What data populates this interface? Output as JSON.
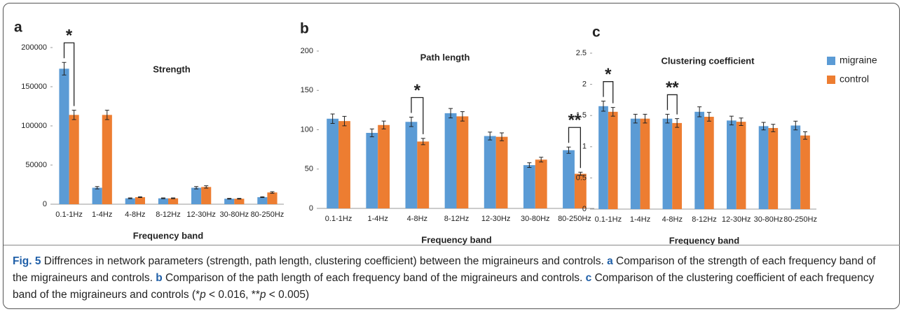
{
  "chart_data": [
    {
      "type": "bar",
      "panel": "a",
      "title": "Strength",
      "xlabel": "Frequency band",
      "categories": [
        "0.1-1Hz",
        "1-4Hz",
        "4-8Hz",
        "8-12Hz",
        "12-30Hz",
        "30-80Hz",
        "80-250Hz"
      ],
      "series": [
        {
          "color": "#5b9bd5",
          "values": [
            173000,
            21000,
            7500,
            7500,
            21000,
            7000,
            9000
          ],
          "errors": [
            8000,
            1500,
            500,
            500,
            1500,
            500,
            500
          ]
        },
        {
          "color": "#ed7d31",
          "values": [
            114000,
            114000,
            9000,
            7500,
            22000,
            7000,
            15000
          ],
          "errors": [
            6000,
            6000,
            500,
            500,
            1500,
            500,
            1000
          ]
        }
      ],
      "ylim": [
        0,
        200000
      ],
      "yticks": [
        0,
        50000,
        100000,
        150000,
        200000
      ],
      "annotations": [
        {
          "text": "*",
          "category": "0.1-1Hz"
        }
      ],
      "legend": false
    },
    {
      "type": "bar",
      "panel": "b",
      "title": "Path length",
      "xlabel": "Frequency band",
      "categories": [
        "0.1-1Hz",
        "1-4Hz",
        "4-8Hz",
        "8-12Hz",
        "12-30Hz",
        "30-80Hz",
        "80-250Hz"
      ],
      "series": [
        {
          "color": "#5b9bd5",
          "values": [
            114,
            96,
            110,
            121,
            92,
            55,
            74
          ],
          "errors": [
            6,
            5,
            6,
            6,
            5,
            3,
            4
          ]
        },
        {
          "color": "#ed7d31",
          "values": [
            111,
            106,
            85,
            117,
            91,
            62,
            44
          ],
          "errors": [
            6,
            5,
            4,
            6,
            5,
            3,
            2
          ]
        }
      ],
      "ylim": [
        0,
        200
      ],
      "yticks": [
        0,
        50,
        100,
        150,
        200
      ],
      "annotations": [
        {
          "text": "*",
          "category": "4-8Hz"
        },
        {
          "text": "**",
          "category": "80-250Hz"
        }
      ],
      "legend": false
    },
    {
      "type": "bar",
      "panel": "c",
      "title": "Clustering coefficient",
      "xlabel": "Frequency band",
      "categories": [
        "0.1-1Hz",
        "1-4Hz",
        "4-8Hz",
        "8-12Hz",
        "12-30Hz",
        "30-80Hz",
        "80-250Hz"
      ],
      "series": [
        {
          "name": "migraine",
          "color": "#5b9bd5",
          "values": [
            1.65,
            1.45,
            1.45,
            1.56,
            1.42,
            1.33,
            1.34
          ],
          "errors": [
            0.08,
            0.07,
            0.07,
            0.08,
            0.07,
            0.06,
            0.07
          ]
        },
        {
          "name": "control",
          "color": "#ed7d31",
          "values": [
            1.56,
            1.45,
            1.38,
            1.48,
            1.4,
            1.3,
            1.18
          ],
          "errors": [
            0.07,
            0.07,
            0.07,
            0.07,
            0.06,
            0.06,
            0.06
          ]
        }
      ],
      "ylim": [
        0,
        2.5
      ],
      "yticks": [
        0,
        0.5,
        1,
        1.5,
        2,
        2.5
      ],
      "annotations": [
        {
          "text": "*",
          "category": "0.1-1Hz"
        },
        {
          "text": "**",
          "category": "4-8Hz"
        }
      ],
      "legend": true
    }
  ],
  "caption": [
    {
      "text": "Fig. 5",
      "style": "b"
    },
    {
      "text": " Diffrences in network parameters (strength, path length, clustering coefficient) between the migraineurs and controls. "
    },
    {
      "text": "a",
      "style": "b"
    },
    {
      "text": " Comparison of the strength of each frequency band of the migraineurs and controls. "
    },
    {
      "text": "b",
      "style": "b"
    },
    {
      "text": " Comparison of the path length of each frequency band of the migraineurs and controls. "
    },
    {
      "text": "c",
      "style": "b"
    },
    {
      "text": " Comparison of the clustering coefficient of each frequency band of the migraineurs and controls (*"
    },
    {
      "text": "p",
      "style": "i"
    },
    {
      "text": " < 0.016, **"
    },
    {
      "text": "p",
      "style": "i"
    },
    {
      "text": " < 0.005)"
    }
  ]
}
